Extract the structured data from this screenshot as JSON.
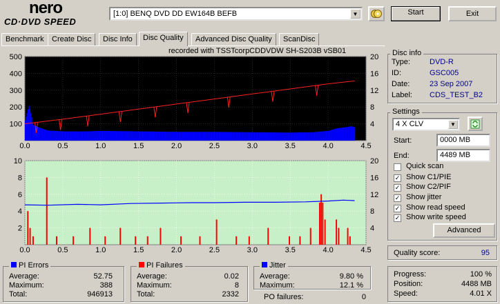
{
  "app": {
    "logo_main": "nero",
    "logo_sub": "CD·DVD SPEED"
  },
  "toolbar": {
    "drive": "[1:0]  BENQ DVD DD EW164B BEFB",
    "start": "Start",
    "exit": "Exit"
  },
  "tabs": [
    {
      "label": "Benchmark"
    },
    {
      "label": "Create Disc"
    },
    {
      "label": "Disc Info"
    },
    {
      "label": "Disc Quality"
    },
    {
      "label": "Advanced Disc Quality"
    },
    {
      "label": "ScanDisc"
    }
  ],
  "chart_header": "recorded with TSSTcorpCDDVDW SH-S203B  vSB01",
  "chart_data": [
    {
      "type": "bar",
      "name": "PI Errors",
      "x_ticks": [
        "0.0",
        "0.5",
        "1.0",
        "1.5",
        "2.0",
        "2.5",
        "3.0",
        "3.5",
        "4.0",
        "4.5"
      ],
      "y_left_ticks": [
        "500",
        "400",
        "300",
        "200",
        "100"
      ],
      "y_right_ticks": [
        "20",
        "16",
        "12",
        "8",
        "4"
      ],
      "xlim": [
        0,
        4.5
      ],
      "ylim": [
        0,
        500
      ],
      "y2lim": [
        0,
        20
      ],
      "pi_bars": [
        [
          0.0,
          120
        ],
        [
          0.05,
          210
        ],
        [
          0.08,
          150
        ],
        [
          0.1,
          95
        ],
        [
          0.15,
          85
        ],
        [
          0.2,
          75
        ],
        [
          0.3,
          60
        ],
        [
          0.5,
          55
        ],
        [
          0.8,
          55
        ],
        [
          1.0,
          58
        ],
        [
          1.5,
          55
        ],
        [
          2.0,
          52
        ],
        [
          2.5,
          52
        ],
        [
          3.0,
          50
        ],
        [
          3.5,
          48
        ],
        [
          3.8,
          50
        ],
        [
          4.0,
          58
        ],
        [
          4.1,
          72
        ],
        [
          4.2,
          78
        ],
        [
          4.3,
          85
        ],
        [
          4.35,
          80
        ]
      ],
      "read_speed": [
        [
          0.0,
          4.0
        ],
        [
          0.5,
          5.1
        ],
        [
          1.0,
          6.3
        ],
        [
          1.5,
          7.5
        ],
        [
          2.0,
          8.7
        ],
        [
          2.5,
          9.9
        ],
        [
          3.0,
          11.1
        ],
        [
          3.5,
          12.3
        ],
        [
          4.0,
          13.5
        ],
        [
          4.35,
          14.2
        ]
      ],
      "read_dips": [
        0.15,
        0.47,
        0.83,
        1.26,
        1.72,
        2.15,
        2.69,
        3.27,
        3.85
      ]
    },
    {
      "type": "bar",
      "name": "PI Failures",
      "x_ticks": [
        "0.0",
        "0.5",
        "1.0",
        "1.5",
        "2.0",
        "2.5",
        "3.0",
        "3.5",
        "4.0",
        "4.5"
      ],
      "y_left_ticks": [
        "10",
        "8",
        "6",
        "4",
        "2"
      ],
      "y_right_ticks": [
        "20",
        "16",
        "12",
        "8",
        "4"
      ],
      "xlim": [
        0,
        4.5
      ],
      "ylim": [
        0,
        10
      ],
      "y2lim": [
        0,
        20
      ],
      "pif_bars": [
        [
          0.03,
          4
        ],
        [
          0.06,
          2
        ],
        [
          0.1,
          1
        ],
        [
          0.28,
          8
        ],
        [
          0.41,
          1
        ],
        [
          0.63,
          1
        ],
        [
          0.85,
          2
        ],
        [
          1.05,
          1
        ],
        [
          1.25,
          2
        ],
        [
          1.45,
          1
        ],
        [
          1.61,
          1
        ],
        [
          1.78,
          2
        ],
        [
          2.05,
          1
        ],
        [
          2.3,
          1
        ],
        [
          2.52,
          3
        ],
        [
          2.78,
          1
        ],
        [
          2.95,
          1
        ],
        [
          3.2,
          2
        ],
        [
          3.48,
          1
        ],
        [
          3.62,
          1
        ],
        [
          3.76,
          2
        ],
        [
          3.88,
          5
        ],
        [
          3.9,
          6
        ],
        [
          3.92,
          5
        ],
        [
          3.95,
          3
        ],
        [
          4.1,
          3
        ],
        [
          4.13,
          2
        ],
        [
          4.25,
          2
        ],
        [
          4.28,
          1
        ]
      ],
      "jitter": [
        [
          0.0,
          9.5
        ],
        [
          0.3,
          9.4
        ],
        [
          0.7,
          9.6
        ],
        [
          1.0,
          9.5
        ],
        [
          1.4,
          9.8
        ],
        [
          1.8,
          9.9
        ],
        [
          2.2,
          10.0
        ],
        [
          2.5,
          10.0
        ],
        [
          2.9,
          10.1
        ],
        [
          3.3,
          10.1
        ],
        [
          3.7,
          10.2
        ],
        [
          4.0,
          10.4
        ],
        [
          4.2,
          10.6
        ],
        [
          4.35,
          10.5
        ]
      ]
    }
  ],
  "pi_errors": {
    "label": "PI Errors",
    "avg_label": "Average:",
    "avg": "52.75",
    "max_label": "Maximum:",
    "max": "388",
    "total_label": "Total:",
    "total": "946913",
    "color": "#0000ff"
  },
  "pi_failures": {
    "label": "PI Failures",
    "avg_label": "Average:",
    "avg": "0.02",
    "max_label": "Maximum:",
    "max": "8",
    "total_label": "Total:",
    "total": "2332",
    "color": "#ff0000"
  },
  "jitter": {
    "label": "Jitter",
    "avg_label": "Average:",
    "avg": "9.80 %",
    "max_label": "Maximum:",
    "max": "12.1 %",
    "po_label": "PO failures:",
    "po": "0",
    "color": "#0000ff"
  },
  "disc_info": {
    "title": "Disc info",
    "type_label": "Type:",
    "type": "DVD-R",
    "id_label": "ID:",
    "id": "GSC005",
    "date_label": "Date:",
    "date": "23 Sep 2007",
    "label_label": "Label:",
    "label": "CDS_TEST_B2"
  },
  "settings": {
    "title": "Settings",
    "speed": "4 X CLV",
    "start_label": "Start:",
    "start": "0000 MB",
    "end_label": "End:",
    "end": "4489 MB",
    "options": [
      {
        "label": "Quick scan",
        "checked": false
      },
      {
        "label": "Show C1/PIE",
        "checked": true
      },
      {
        "label": "Show C2/PIF",
        "checked": true
      },
      {
        "label": "Show jitter",
        "checked": true
      },
      {
        "label": "Show read speed",
        "checked": true
      },
      {
        "label": "Show write speed",
        "checked": true
      }
    ],
    "advanced": "Advanced"
  },
  "quality": {
    "label": "Quality score:",
    "value": "95"
  },
  "progress": {
    "progress_label": "Progress:",
    "progress": "100 %",
    "position_label": "Position:",
    "position": "4488 MB",
    "speed_label": "Speed:",
    "speed": "4.01 X"
  }
}
